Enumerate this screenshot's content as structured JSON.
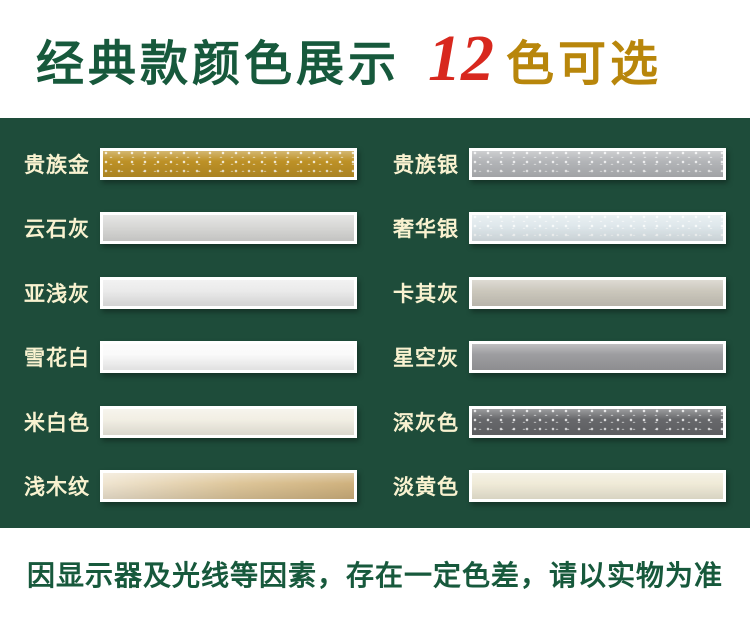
{
  "header": {
    "title": "经典款颜色展示",
    "count": "12",
    "count_suffix": "色可选",
    "title_color": "#17593c",
    "count_color": "#d8281e",
    "suffix_color": "#b8860b"
  },
  "panel": {
    "background_color": "#1e4c3a",
    "label_color": "#f9f2d0"
  },
  "colors": {
    "left": [
      {
        "label": "贵族金",
        "color": "#bd9126",
        "texture": "glitter"
      },
      {
        "label": "云石灰",
        "color": "#d9d9d7",
        "texture": "flat"
      },
      {
        "label": "亚浅灰",
        "color": "#ebebeb",
        "texture": "flat"
      },
      {
        "label": "雪花白",
        "color": "#fafafa",
        "texture": "flat"
      },
      {
        "label": "米白色",
        "color": "#f2efe4",
        "texture": "flat"
      },
      {
        "label": "浅木纹",
        "color": "#ddc598",
        "texture": "wood"
      }
    ],
    "right": [
      {
        "label": "贵族银",
        "color": "#b3b5b8",
        "texture": "glitter"
      },
      {
        "label": "奢华银",
        "color": "#dfe8ec",
        "texture": "glitter"
      },
      {
        "label": "卡其灰",
        "color": "#ccc8bd",
        "texture": "flat"
      },
      {
        "label": "星空灰",
        "color": "#9d9da0",
        "texture": "flat"
      },
      {
        "label": "深灰色",
        "color": "#67686b",
        "texture": "glitter"
      },
      {
        "label": "淡黄色",
        "color": "#f0ebd8",
        "texture": "flat"
      }
    ]
  },
  "footer": {
    "disclaimer": "因显示器及光线等因素，存在一定色差，请以实物为准"
  }
}
